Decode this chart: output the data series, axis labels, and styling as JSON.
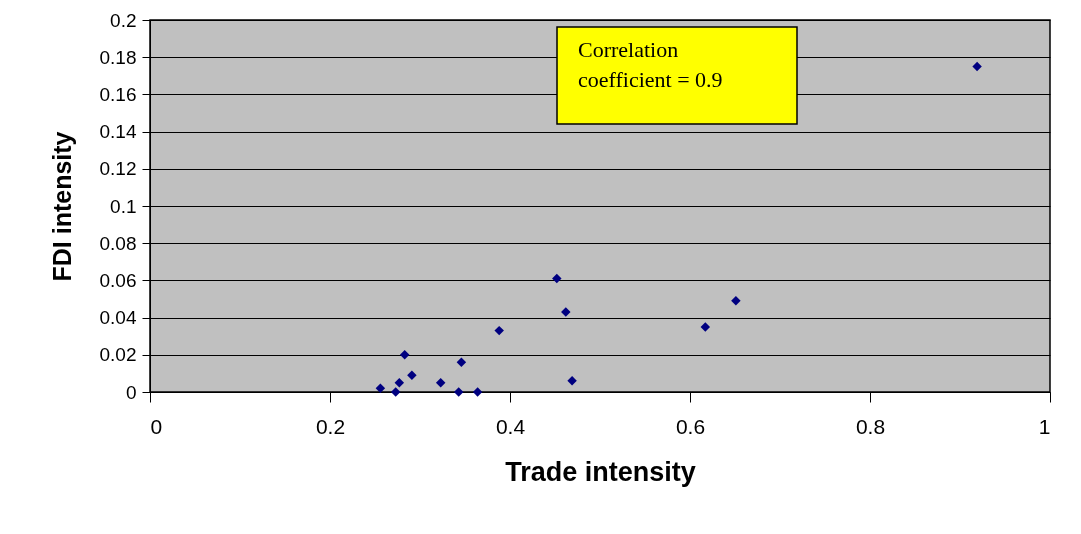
{
  "chart_data": {
    "type": "scatter",
    "xlabel": "Trade intensity",
    "ylabel": "FDI intensity",
    "x": [
      0.256,
      0.273,
      0.277,
      0.283,
      0.291,
      0.323,
      0.343,
      0.346,
      0.364,
      0.388,
      0.452,
      0.462,
      0.469,
      0.617,
      0.651,
      0.919
    ],
    "series": [
      {
        "color": "#000080",
        "values": [
          0.002,
          0,
          0.005,
          0.02,
          0.009,
          0.005,
          0,
          0.016,
          0,
          0.033,
          0.061,
          0.043,
          0.006,
          0.035,
          0.049,
          0.175
        ]
      }
    ],
    "xlim": [
      0,
      1
    ],
    "xticks": [
      0,
      0.2,
      0.4,
      0.6,
      0.8,
      1
    ],
    "ylim": [
      0,
      0.2
    ],
    "yticks": [
      0,
      0.02,
      0.04,
      0.06,
      0.08,
      0.1,
      0.12,
      0.14,
      0.16,
      0.18,
      0.2
    ],
    "grid": "y",
    "marker": "diamond",
    "legend": false,
    "annotations": [
      "Correlation coefficient = 0.9"
    ]
  }
}
